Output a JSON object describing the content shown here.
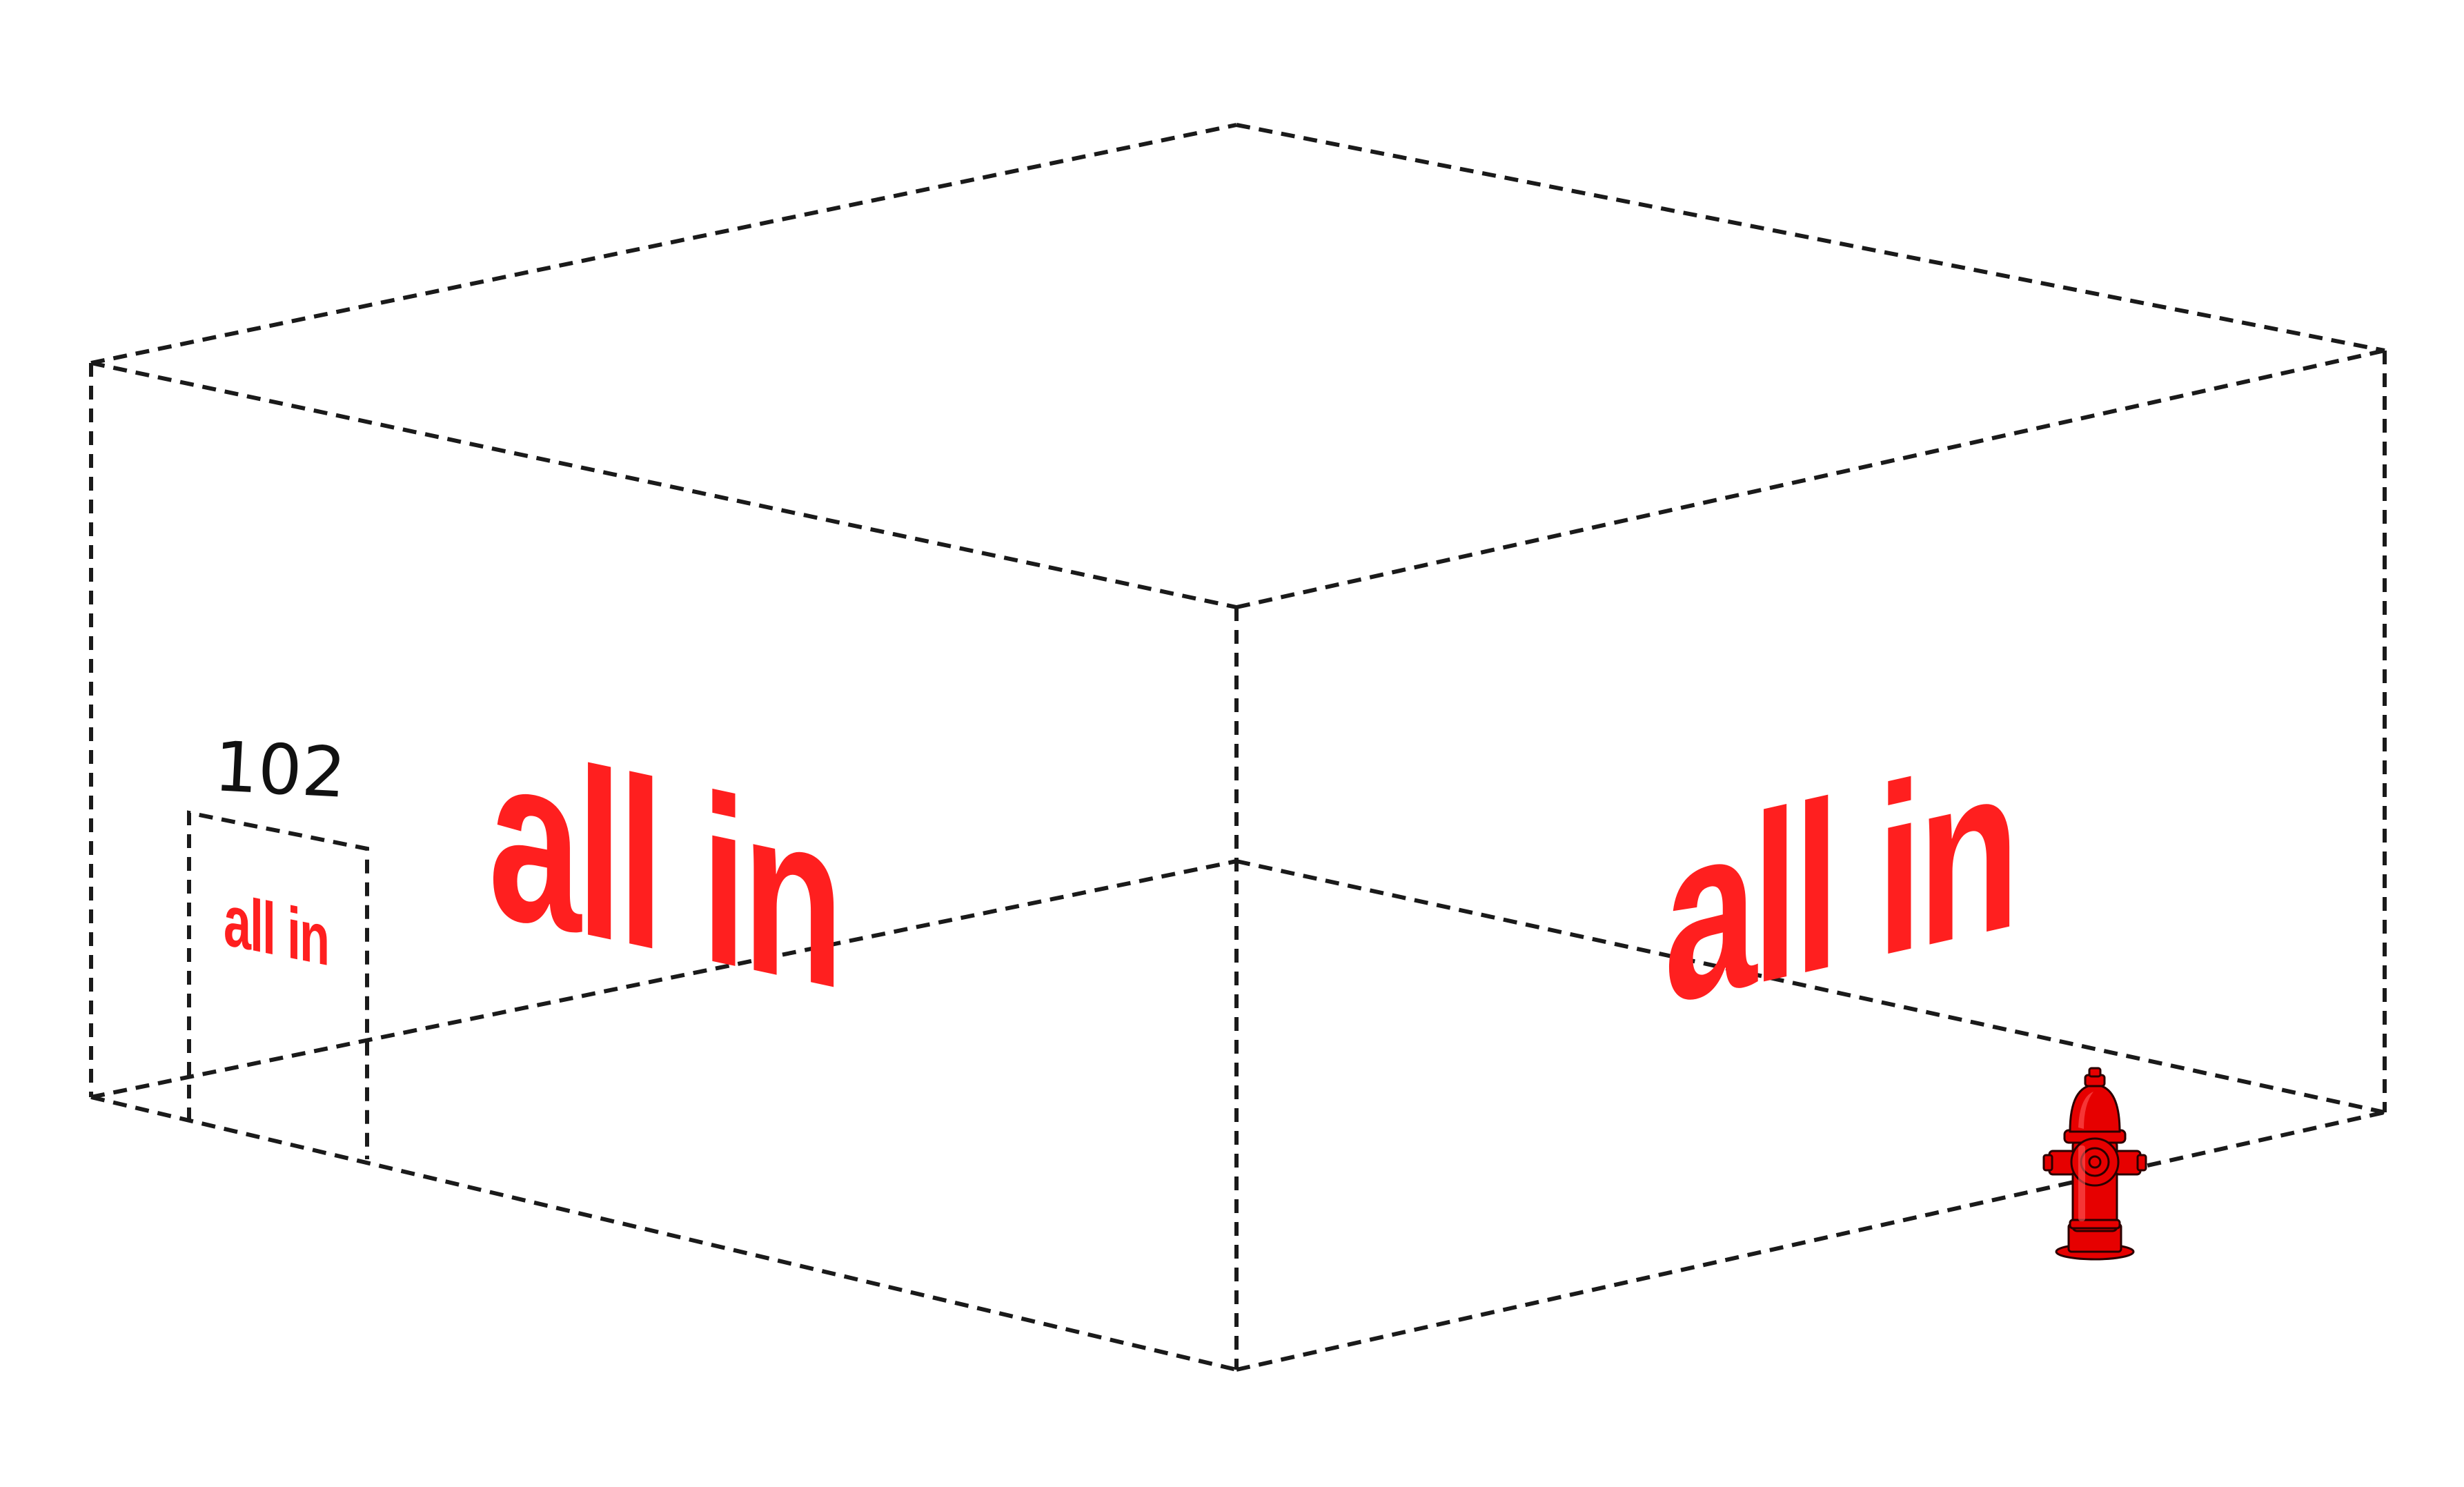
{
  "unit": {
    "number": "102",
    "sign_text": "all in"
  },
  "facade": {
    "left_sign_text": "all in",
    "right_sign_text": "all in"
  },
  "colors": {
    "sign": "#ff1f1f",
    "edges": "#1a1a1a",
    "hydrant": "#e60000",
    "background": "#ffffff"
  },
  "icons": {
    "hydrant": "fire-hydrant-icon"
  }
}
